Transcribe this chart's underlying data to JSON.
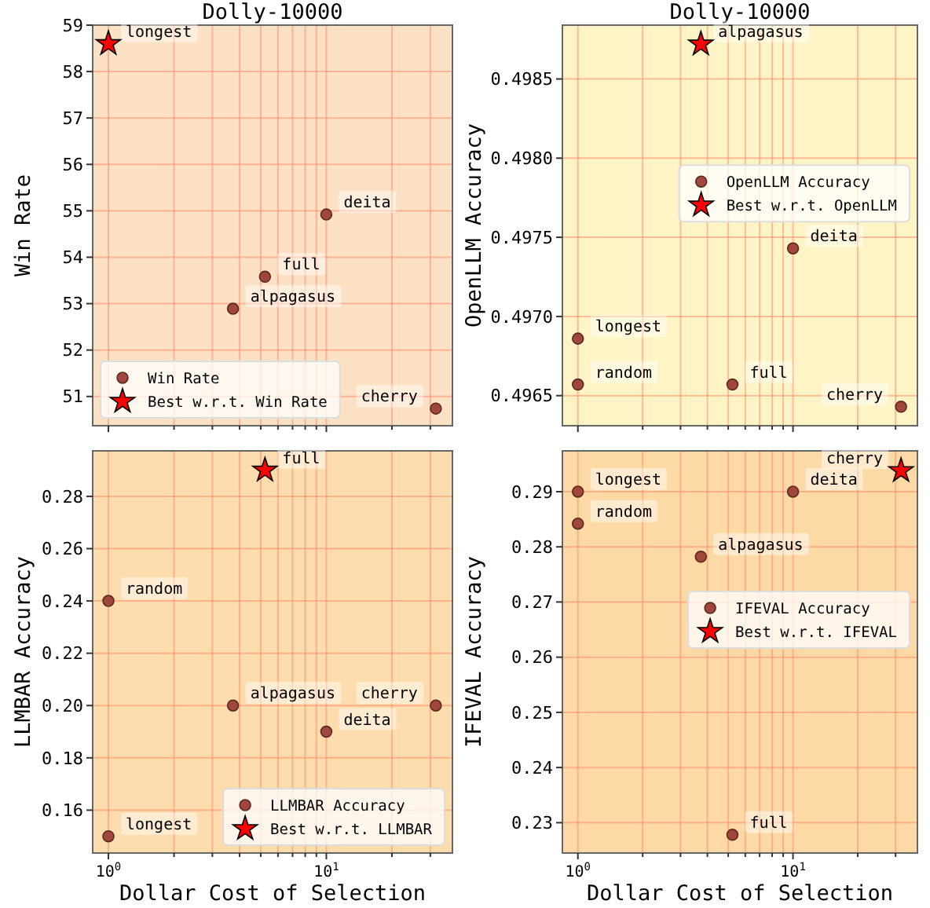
{
  "chart_data": [
    {
      "type": "scatter",
      "title": "Dolly-10000",
      "ylabel": "Win Rate",
      "log": "x",
      "grid": true,
      "legend": "bottom left",
      "tick_labels": "y",
      "xlim": [
        0.847,
        37.9
      ],
      "xticks": [
        {
          "value": 1,
          "label": null
        },
        {
          "value": 2,
          "label": null
        },
        {
          "value": 3,
          "label": null
        },
        {
          "value": 4,
          "label": null
        },
        {
          "value": 5,
          "label": null
        },
        {
          "value": 6,
          "label": null
        },
        {
          "value": 7,
          "label": null
        },
        {
          "value": 8,
          "label": null
        },
        {
          "value": 9,
          "label": null
        },
        {
          "value": 10,
          "label": null
        },
        {
          "value": 20,
          "label": null
        },
        {
          "value": 30,
          "label": null
        }
      ],
      "ylim": [
        50.37,
        59.0
      ],
      "yticks": [
        51,
        52,
        53,
        54,
        55,
        56,
        57,
        58,
        59
      ],
      "series": [
        {
          "name": "Win Rate",
          "color": "#a0463c",
          "marker": "circle",
          "x": [
            3.73,
            5.23,
            10,
            31.8
          ],
          "values": [
            52.89,
            53.58,
            54.92,
            50.74
          ]
        },
        {
          "name": "Best w.r.t. Win Rate",
          "color": "#ff0000",
          "marker": "star",
          "x": [
            1
          ],
          "values": [
            58.6
          ]
        }
      ],
      "annotations": [
        {
          "text": "longest",
          "x": 1,
          "y": 58.6
        },
        {
          "text": "alpagasus",
          "x": 3.73,
          "y": 52.89
        },
        {
          "text": "full",
          "x": 5.23,
          "y": 53.58
        },
        {
          "text": "deita",
          "x": 10,
          "y": 54.92
        },
        {
          "text": "cherry",
          "x": 31.8,
          "y": 50.74
        }
      ]
    },
    {
      "type": "scatter",
      "title": "Dolly-10000",
      "ylabel": "OpenLLM Accuracy",
      "log": "x",
      "grid": true,
      "legend": "center right",
      "tick_labels": "y",
      "xlim": [
        0.847,
        37.9
      ],
      "xticks": [
        {
          "value": 1,
          "label": null
        },
        {
          "value": 2,
          "label": null
        },
        {
          "value": 3,
          "label": null
        },
        {
          "value": 4,
          "label": null
        },
        {
          "value": 5,
          "label": null
        },
        {
          "value": 6,
          "label": null
        },
        {
          "value": 7,
          "label": null
        },
        {
          "value": 8,
          "label": null
        },
        {
          "value": 9,
          "label": null
        },
        {
          "value": 10,
          "label": null
        },
        {
          "value": 20,
          "label": null
        },
        {
          "value": 30,
          "label": null
        }
      ],
      "ylim": [
        0.49631,
        0.49884
      ],
      "yticks": [
        0.4965,
        {
          "value": 0.497,
          "label": "0.4970"
        },
        0.4975,
        {
          "value": 0.498,
          "label": "0.4980"
        },
        0.4985
      ],
      "series": [
        {
          "name": "OpenLLM Accuracy",
          "color": "#a0463c",
          "marker": "circle",
          "x": [
            1,
            1,
            5.23,
            10,
            31.8
          ],
          "values": [
            0.49686,
            0.49657,
            0.49657,
            0.49743,
            0.49643
          ]
        },
        {
          "name": "Best w.r.t. OpenLLM",
          "color": "#ff0000",
          "marker": "star",
          "x": [
            3.73
          ],
          "values": [
            0.49872
          ]
        }
      ],
      "annotations": [
        {
          "text": "alpagasus",
          "x": 3.73,
          "y": 0.49872
        },
        {
          "text": "longest",
          "x": 1,
          "y": 0.49686
        },
        {
          "text": "random",
          "x": 1,
          "y": 0.49657
        },
        {
          "text": "full",
          "x": 5.23,
          "y": 0.49657
        },
        {
          "text": "deita",
          "x": 10,
          "y": 0.49743
        },
        {
          "text": "cherry",
          "x": 31.8,
          "y": 0.49643
        }
      ]
    },
    {
      "type": "scatter",
      "ylabel": "LLMBAR Accuracy",
      "xlabel": "Dollar Cost of Selection",
      "log": "x",
      "grid": true,
      "legend": "bottom right",
      "xlim": [
        0.847,
        37.9
      ],
      "xticks": [
        {
          "value": 1,
          "label": "10$^{0}$"
        },
        {
          "value": 2,
          "label": null
        },
        {
          "value": 3,
          "label": null
        },
        {
          "value": 4,
          "label": null
        },
        {
          "value": 5,
          "label": null
        },
        {
          "value": 6,
          "label": null
        },
        {
          "value": 7,
          "label": null
        },
        {
          "value": 8,
          "label": null
        },
        {
          "value": 9,
          "label": null
        },
        {
          "value": 10,
          "label": "10$^{1}$"
        },
        {
          "value": 20,
          "label": null
        },
        {
          "value": 30,
          "label": null
        }
      ],
      "ylim": [
        0.1436,
        0.2974
      ],
      "yticks": [
        0.16,
        0.18,
        {
          "value": 0.2,
          "label": "0.20"
        },
        0.22,
        0.24,
        0.26,
        0.28
      ],
      "series": [
        {
          "name": "LLMBAR Accuracy",
          "color": "#a0463c",
          "marker": "circle",
          "x": [
            1,
            1,
            3.73,
            10,
            31.8
          ],
          "values": [
            0.24,
            0.15,
            0.2,
            0.19,
            0.2
          ]
        },
        {
          "name": "Best w.r.t. LLMBAR",
          "color": "#ff0000",
          "marker": "star",
          "x": [
            5.23
          ],
          "values": [
            0.29
          ]
        }
      ],
      "annotations": [
        {
          "text": "full",
          "x": 5.23,
          "y": 0.29
        },
        {
          "text": "random",
          "x": 1,
          "y": 0.24
        },
        {
          "text": "longest",
          "x": 1,
          "y": 0.15
        },
        {
          "text": "alpagasus",
          "x": 3.73,
          "y": 0.2
        },
        {
          "text": "deita",
          "x": 10,
          "y": 0.19
        },
        {
          "text": "cherry",
          "x": 31.8,
          "y": 0.2
        }
      ]
    },
    {
      "type": "scatter",
      "ylabel": "IFEVAL Accuracy",
      "xlabel": "Dollar Cost of Selection",
      "log": "x",
      "grid": true,
      "legend": "center right",
      "xlim": [
        0.847,
        37.9
      ],
      "xticks": [
        {
          "value": 1,
          "label": "10$^{0}$"
        },
        {
          "value": 2,
          "label": null
        },
        {
          "value": 3,
          "label": null
        },
        {
          "value": 4,
          "label": null
        },
        {
          "value": 5,
          "label": null
        },
        {
          "value": 6,
          "label": null
        },
        {
          "value": 7,
          "label": null
        },
        {
          "value": 8,
          "label": null
        },
        {
          "value": 9,
          "label": null
        },
        {
          "value": 10,
          "label": "10$^{1}$"
        },
        {
          "value": 20,
          "label": null
        },
        {
          "value": 30,
          "label": null
        }
      ],
      "ylim": [
        0.2245,
        0.2974
      ],
      "yticks": [
        0.23,
        0.24,
        0.25,
        0.26,
        0.27,
        0.28,
        0.29
      ],
      "series": [
        {
          "name": "IFEVAL Accuracy",
          "color": "#a0463c",
          "marker": "circle",
          "x": [
            1,
            1,
            3.73,
            10,
            5.23
          ],
          "values": [
            0.29,
            0.2842,
            0.2782,
            0.29,
            0.2278
          ]
        },
        {
          "name": "Best w.r.t. IFEVAL",
          "color": "#ff0000",
          "marker": "star",
          "x": [
            31.8
          ],
          "values": [
            0.2938
          ]
        }
      ],
      "annotations": [
        {
          "text": "cherry",
          "x": 31.8,
          "y": 0.2938
        },
        {
          "text": "longest",
          "x": 1,
          "y": 0.29
        },
        {
          "text": "random",
          "x": 1,
          "y": 0.2842
        },
        {
          "text": "alpagasus",
          "x": 3.73,
          "y": 0.2782
        },
        {
          "text": "deita",
          "x": 10,
          "y": 0.29
        },
        {
          "text": "full",
          "x": 5.23,
          "y": 0.2278
        }
      ]
    }
  ]
}
